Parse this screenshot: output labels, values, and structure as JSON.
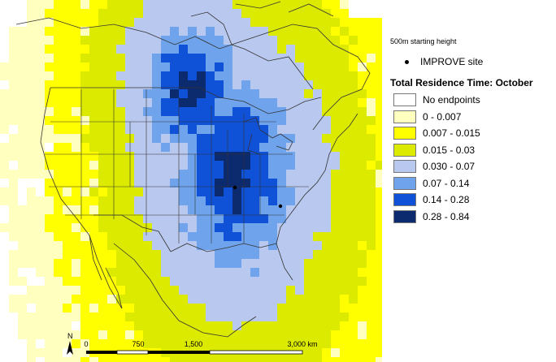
{
  "legend": {
    "starting_height": "500m starting height",
    "site_label": "IMPROVE site",
    "title": "Total Residence Time: October",
    "items": [
      {
        "label": "No endpoints",
        "color": "#ffffff"
      },
      {
        "label": "0 - 0.007",
        "color": "#ffffc0"
      },
      {
        "label": "0.007 - 0.015",
        "color": "#ffff00"
      },
      {
        "label": "0.015 - 0.03",
        "color": "#dcea00"
      },
      {
        "label": "0.030 - 0.07",
        "color": "#b9c8ee"
      },
      {
        "label": "0.07 - 0.14",
        "color": "#6fa4ec"
      },
      {
        "label": "0.14 - 0.28",
        "color": "#0f52d8"
      },
      {
        "label": "0.28 - 0.84",
        "color": "#0c2a6e"
      }
    ]
  },
  "scale_bar": {
    "north": "N",
    "ticks": [
      "0",
      "750",
      "1,500",
      "3,000 km"
    ]
  }
}
